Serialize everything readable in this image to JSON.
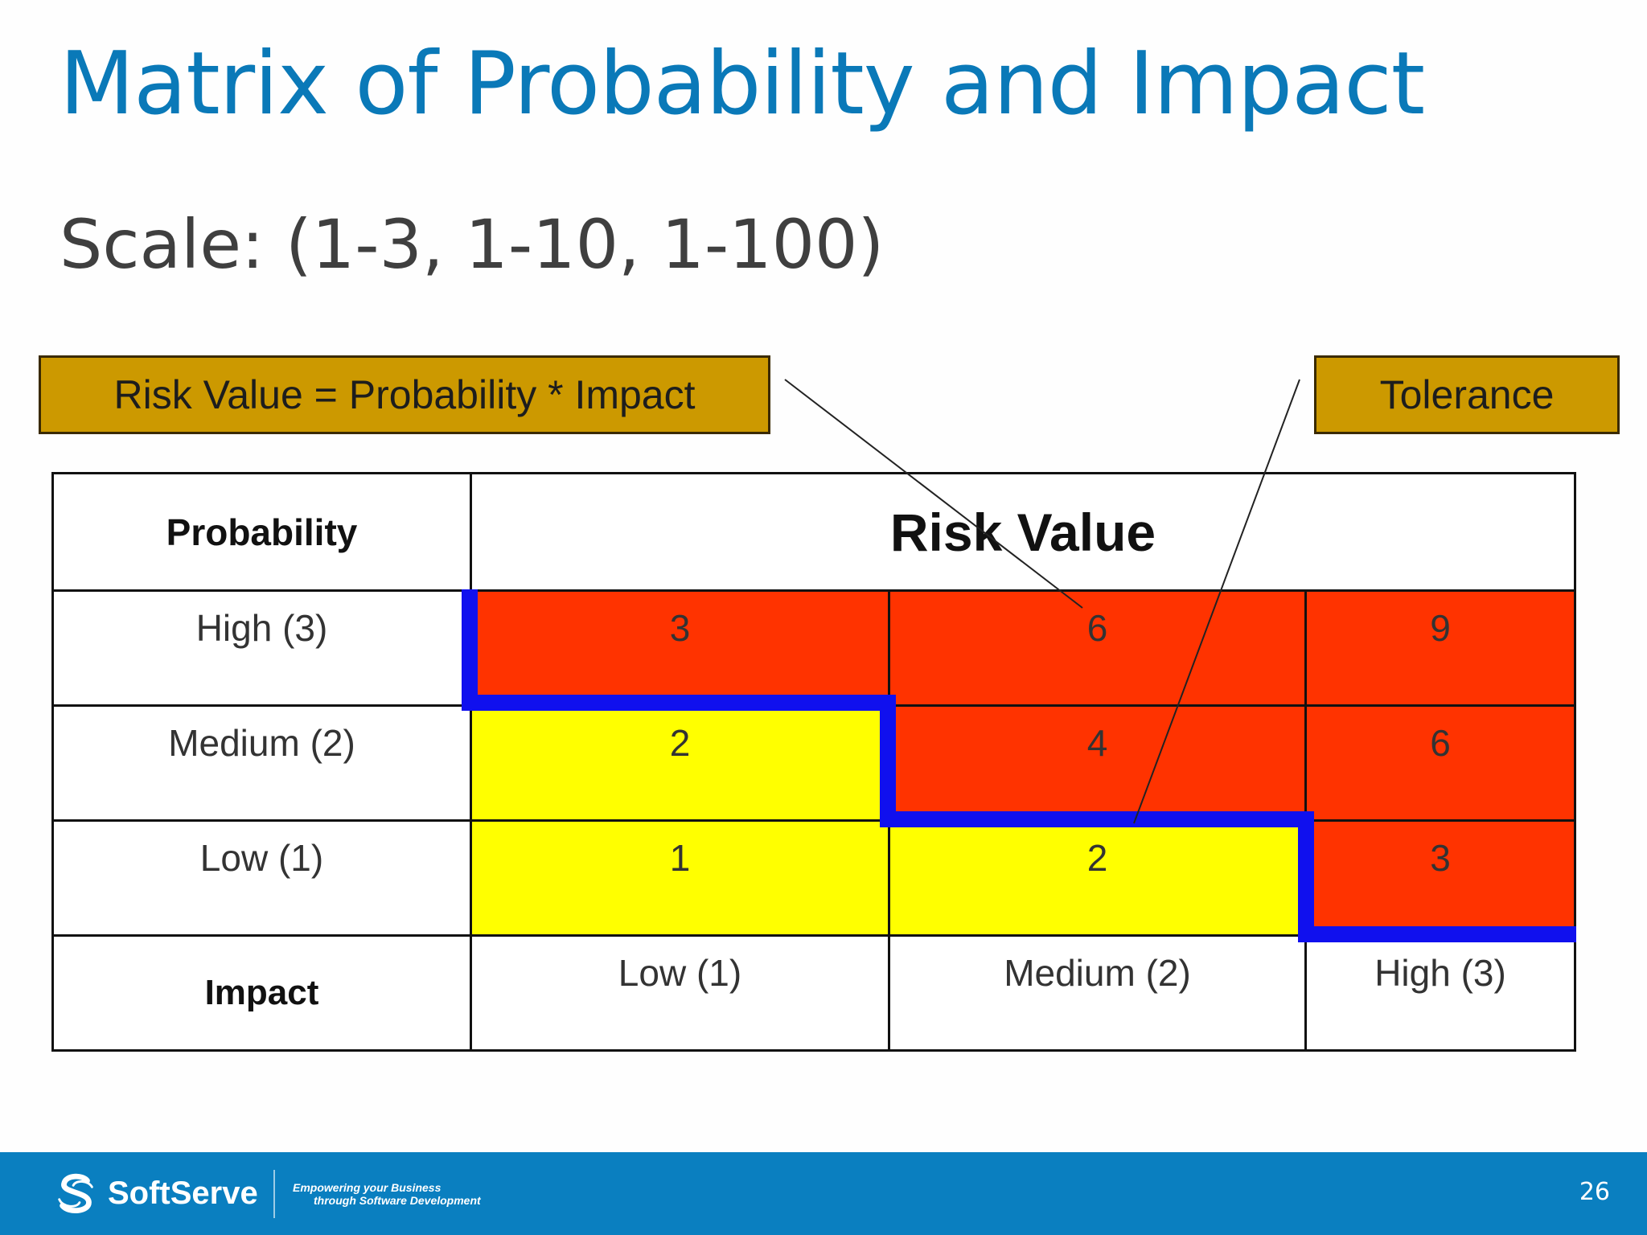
{
  "slide": {
    "title": "Matrix of Probability and Impact",
    "subtitle": "Scale: (1-3, 1-10, 1-100)",
    "page_number": "26"
  },
  "callouts": {
    "formula": "Risk Value = Probability * Impact",
    "tolerance": "Tolerance"
  },
  "matrix": {
    "probability_header": "Probability",
    "risk_value_header": "Risk Value",
    "impact_header": "Impact",
    "rows": [
      {
        "label": "High (3)",
        "values": [
          "3",
          "6",
          "9"
        ]
      },
      {
        "label": "Medium (2)",
        "values": [
          "2",
          "4",
          "6"
        ]
      },
      {
        "label": "Low (1)",
        "values": [
          "1",
          "2",
          "3"
        ]
      }
    ],
    "impact_levels": [
      "Low (1)",
      "Medium (2)",
      "High (3)"
    ],
    "colors": {
      "high_risk": "#ff3300",
      "low_risk": "#ffff00",
      "tolerance_line": "#1010ee",
      "callout_fill": "#cc9900"
    }
  },
  "footer": {
    "brand": "SoftServe",
    "tagline_line1": "Empowering your Business",
    "tagline_line2": "through Software Development",
    "logo_icon": "softserve-logo-icon",
    "background_color": "#0a7fc0"
  }
}
